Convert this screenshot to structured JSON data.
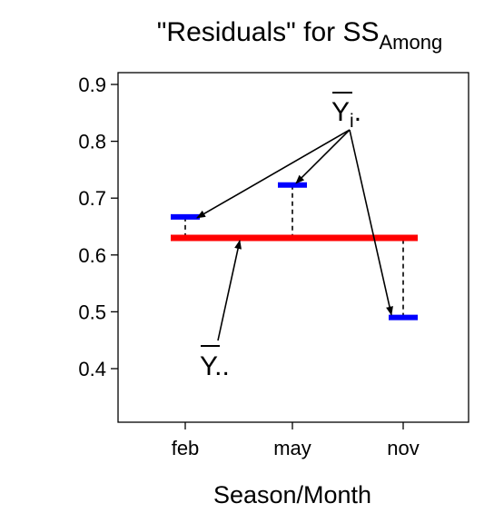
{
  "chart_data": {
    "type": "scatter",
    "title": "\"Residuals\" for SS",
    "title_subscript": "Among",
    "xlabel": "Season/Month",
    "ylabel": "",
    "categories": [
      "feb",
      "may",
      "nov"
    ],
    "ylim": [
      0.3,
      0.92
    ],
    "yticks": [
      0.4,
      0.5,
      0.6,
      0.7,
      0.8,
      0.9
    ],
    "ytick_labels": [
      "0.4",
      "0.5",
      "0.6",
      "0.7",
      "0.8",
      "0.9"
    ],
    "grid": false,
    "grand_mean": 0.63,
    "group_means": [
      0.667,
      0.723,
      0.49
    ],
    "annotations": {
      "group_mean_label": {
        "main": "Y",
        "sub": "i",
        "dots": "."
      },
      "grand_mean_label": {
        "main": "Y",
        "dots": ".."
      }
    },
    "colors": {
      "group_mean": "#0000ff",
      "grand_mean": "#ff0000",
      "axis": "#000000"
    }
  }
}
